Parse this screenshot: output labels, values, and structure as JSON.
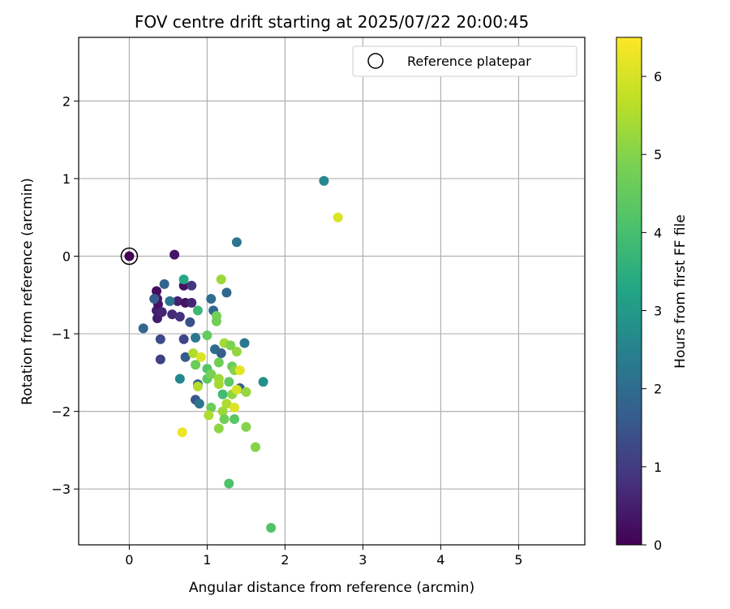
{
  "chart_data": {
    "type": "scatter",
    "title": "FOV centre drift starting at 2025/07/22 20:00:45",
    "xlabel": "Angular distance from reference (arcmin)",
    "ylabel": "Rotation from reference (arcmin)",
    "xlim": [
      -0.65,
      5.85
    ],
    "ylim": [
      -3.72,
      2.82
    ],
    "xticks": [
      "0",
      "1",
      "2",
      "3",
      "4",
      "5"
    ],
    "yticks": [
      "−3",
      "−2",
      "−1",
      "0",
      "1",
      "2"
    ],
    "grid": true,
    "legend": {
      "position": "top-right",
      "entries": [
        "Reference platepar"
      ]
    },
    "reference_point": {
      "x": 0,
      "y": 0
    },
    "colorbar": {
      "label": "Hours from first FF file",
      "range": [
        0,
        6.5
      ],
      "ticks": [
        "0",
        "1",
        "2",
        "3",
        "4",
        "5",
        "6"
      ],
      "colormap": "viridis"
    },
    "points": [
      {
        "x": 0.0,
        "y": 0.0,
        "c": 0.0
      },
      {
        "x": 0.35,
        "y": -0.45,
        "c": 0.2
      },
      {
        "x": 0.36,
        "y": -0.55,
        "c": 0.4
      },
      {
        "x": 0.35,
        "y": -0.7,
        "c": 0.5
      },
      {
        "x": 0.37,
        "y": -0.62,
        "c": 0.3
      },
      {
        "x": 0.36,
        "y": -0.8,
        "c": 0.45
      },
      {
        "x": 0.42,
        "y": -0.72,
        "c": 0.6
      },
      {
        "x": 0.32,
        "y": -0.55,
        "c": 1.6
      },
      {
        "x": 0.58,
        "y": 0.02,
        "c": 0.35
      },
      {
        "x": 0.55,
        "y": -0.75,
        "c": 0.7
      },
      {
        "x": 0.62,
        "y": -0.58,
        "c": 0.55
      },
      {
        "x": 0.65,
        "y": -0.78,
        "c": 0.8
      },
      {
        "x": 0.7,
        "y": -0.38,
        "c": 0.25
      },
      {
        "x": 0.72,
        "y": -0.6,
        "c": 0.3
      },
      {
        "x": 0.8,
        "y": -0.38,
        "c": 0.9
      },
      {
        "x": 0.8,
        "y": -0.6,
        "c": 0.6
      },
      {
        "x": 0.78,
        "y": -0.85,
        "c": 1.4
      },
      {
        "x": 0.45,
        "y": -0.36,
        "c": 1.8
      },
      {
        "x": 0.52,
        "y": -0.58,
        "c": 2.2
      },
      {
        "x": 0.18,
        "y": -0.93,
        "c": 1.9
      },
      {
        "x": 0.4,
        "y": -1.07,
        "c": 1.3
      },
      {
        "x": 0.4,
        "y": -1.33,
        "c": 1.1
      },
      {
        "x": 0.7,
        "y": -1.07,
        "c": 1.2
      },
      {
        "x": 0.72,
        "y": -1.3,
        "c": 1.6
      },
      {
        "x": 0.7,
        "y": -0.3,
        "c": 3.3
      },
      {
        "x": 0.88,
        "y": -0.7,
        "c": 3.8
      },
      {
        "x": 0.85,
        "y": -1.05,
        "c": 2.3
      },
      {
        "x": 0.65,
        "y": -1.58,
        "c": 2.6
      },
      {
        "x": 0.85,
        "y": -1.85,
        "c": 1.5
      },
      {
        "x": 0.88,
        "y": -1.65,
        "c": 1.8
      },
      {
        "x": 0.9,
        "y": -1.9,
        "c": 2.2
      },
      {
        "x": 1.05,
        "y": -0.55,
        "c": 2.0
      },
      {
        "x": 1.08,
        "y": -0.7,
        "c": 1.9
      },
      {
        "x": 1.25,
        "y": -0.47,
        "c": 1.9
      },
      {
        "x": 1.38,
        "y": 0.18,
        "c": 2.2
      },
      {
        "x": 1.1,
        "y": -1.2,
        "c": 2.0
      },
      {
        "x": 1.18,
        "y": -1.25,
        "c": 1.7
      },
      {
        "x": 1.48,
        "y": -1.12,
        "c": 2.3
      },
      {
        "x": 1.42,
        "y": -1.7,
        "c": 1.7
      },
      {
        "x": 1.72,
        "y": -1.62,
        "c": 2.8
      },
      {
        "x": 2.5,
        "y": 0.97,
        "c": 2.6
      },
      {
        "x": 2.68,
        "y": 0.5,
        "c": 6.1
      },
      {
        "x": 1.18,
        "y": -0.3,
        "c": 5.3
      },
      {
        "x": 1.12,
        "y": -0.77,
        "c": 4.8
      },
      {
        "x": 1.12,
        "y": -0.84,
        "c": 4.7
      },
      {
        "x": 1.0,
        "y": -1.02,
        "c": 4.5
      },
      {
        "x": 1.22,
        "y": -1.12,
        "c": 5.4
      },
      {
        "x": 1.3,
        "y": -1.15,
        "c": 4.9
      },
      {
        "x": 1.38,
        "y": -1.23,
        "c": 5.2
      },
      {
        "x": 0.82,
        "y": -1.25,
        "c": 5.5
      },
      {
        "x": 0.92,
        "y": -1.3,
        "c": 6.1
      },
      {
        "x": 0.85,
        "y": -1.4,
        "c": 4.6
      },
      {
        "x": 1.0,
        "y": -1.45,
        "c": 4.2
      },
      {
        "x": 1.0,
        "y": -1.58,
        "c": 4.4
      },
      {
        "x": 1.05,
        "y": -1.52,
        "c": 4.8
      },
      {
        "x": 1.15,
        "y": -1.37,
        "c": 4.7
      },
      {
        "x": 1.32,
        "y": -1.42,
        "c": 4.6
      },
      {
        "x": 1.35,
        "y": -1.47,
        "c": 5.0
      },
      {
        "x": 1.42,
        "y": -1.47,
        "c": 6.2
      },
      {
        "x": 1.15,
        "y": -1.58,
        "c": 5.3
      },
      {
        "x": 1.15,
        "y": -1.65,
        "c": 5.4
      },
      {
        "x": 1.28,
        "y": -1.62,
        "c": 4.4
      },
      {
        "x": 1.2,
        "y": -1.78,
        "c": 3.9
      },
      {
        "x": 1.32,
        "y": -1.78,
        "c": 5.1
      },
      {
        "x": 1.38,
        "y": -1.72,
        "c": 6.0
      },
      {
        "x": 1.5,
        "y": -1.75,
        "c": 5.2
      },
      {
        "x": 0.88,
        "y": -1.68,
        "c": 5.6
      },
      {
        "x": 1.25,
        "y": -1.9,
        "c": 5.5
      },
      {
        "x": 1.05,
        "y": -1.95,
        "c": 4.6
      },
      {
        "x": 1.2,
        "y": -2.0,
        "c": 5.3
      },
      {
        "x": 1.35,
        "y": -1.95,
        "c": 6.1
      },
      {
        "x": 1.02,
        "y": -2.05,
        "c": 5.5
      },
      {
        "x": 1.22,
        "y": -2.1,
        "c": 4.7
      },
      {
        "x": 1.35,
        "y": -2.1,
        "c": 4.3
      },
      {
        "x": 1.15,
        "y": -2.22,
        "c": 5.1
      },
      {
        "x": 1.5,
        "y": -2.2,
        "c": 5.0
      },
      {
        "x": 0.68,
        "y": -2.27,
        "c": 6.3
      },
      {
        "x": 1.62,
        "y": -2.46,
        "c": 5.0
      },
      {
        "x": 1.28,
        "y": -2.93,
        "c": 4.1
      },
      {
        "x": 1.82,
        "y": -3.5,
        "c": 4.2
      }
    ]
  }
}
